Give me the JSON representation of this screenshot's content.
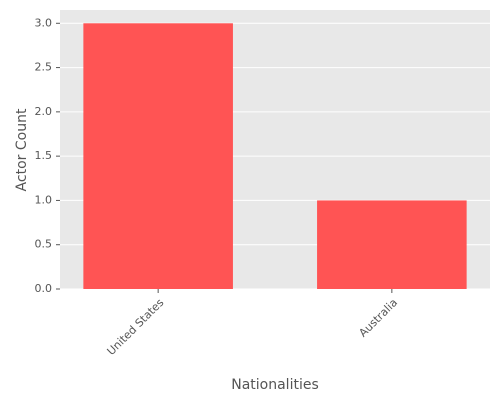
{
  "chart_data": {
    "type": "bar",
    "categories": [
      "United States",
      "Australia"
    ],
    "values": [
      3,
      1
    ],
    "color": "#ff5454",
    "xlabel": "Nationalities",
    "ylabel": "Actor Count",
    "ylim": [
      0,
      3.15
    ],
    "yticks": [
      {
        "value": 0,
        "label": "0.0"
      },
      {
        "value": 0.5,
        "label": "0.5"
      },
      {
        "value": 1,
        "label": "1.0"
      },
      {
        "value": 1.5,
        "label": "1.5"
      },
      {
        "value": 2,
        "label": "2.0"
      },
      {
        "value": 2.5,
        "label": "2.5"
      },
      {
        "value": 3,
        "label": "3.0"
      }
    ],
    "grid": true
  }
}
